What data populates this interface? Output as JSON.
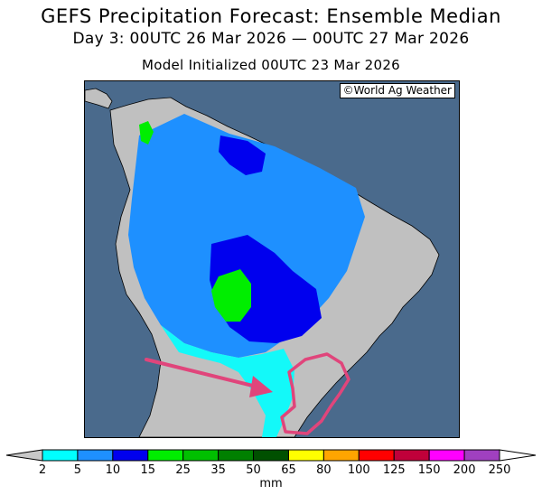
{
  "header": {
    "title": "GEFS Precipitation Forecast: Ensemble Median",
    "period": "Day 3: 00UTC 26 Mar 2026 — 00UTC 27 Mar 2026",
    "initialized": "Model Initialized 00UTC 23 Mar 2026"
  },
  "map": {
    "credit": "©World Ag Weather",
    "ocean_color": "#4a6a8c",
    "land_color": "#c0c0c0",
    "annotation_color": "#e0457b"
  },
  "legend": {
    "units": "mm",
    "levels": [
      "2",
      "5",
      "10",
      "15",
      "25",
      "35",
      "50",
      "65",
      "80",
      "100",
      "125",
      "150",
      "200",
      "250"
    ],
    "colors": [
      "#00ffff",
      "#1e90ff",
      "#0000ee",
      "#00ee00",
      "#00c000",
      "#008000",
      "#005000",
      "#ffff00",
      "#ffa500",
      "#ff0000",
      "#c0003a",
      "#ff00ff",
      "#a040c0"
    ]
  }
}
